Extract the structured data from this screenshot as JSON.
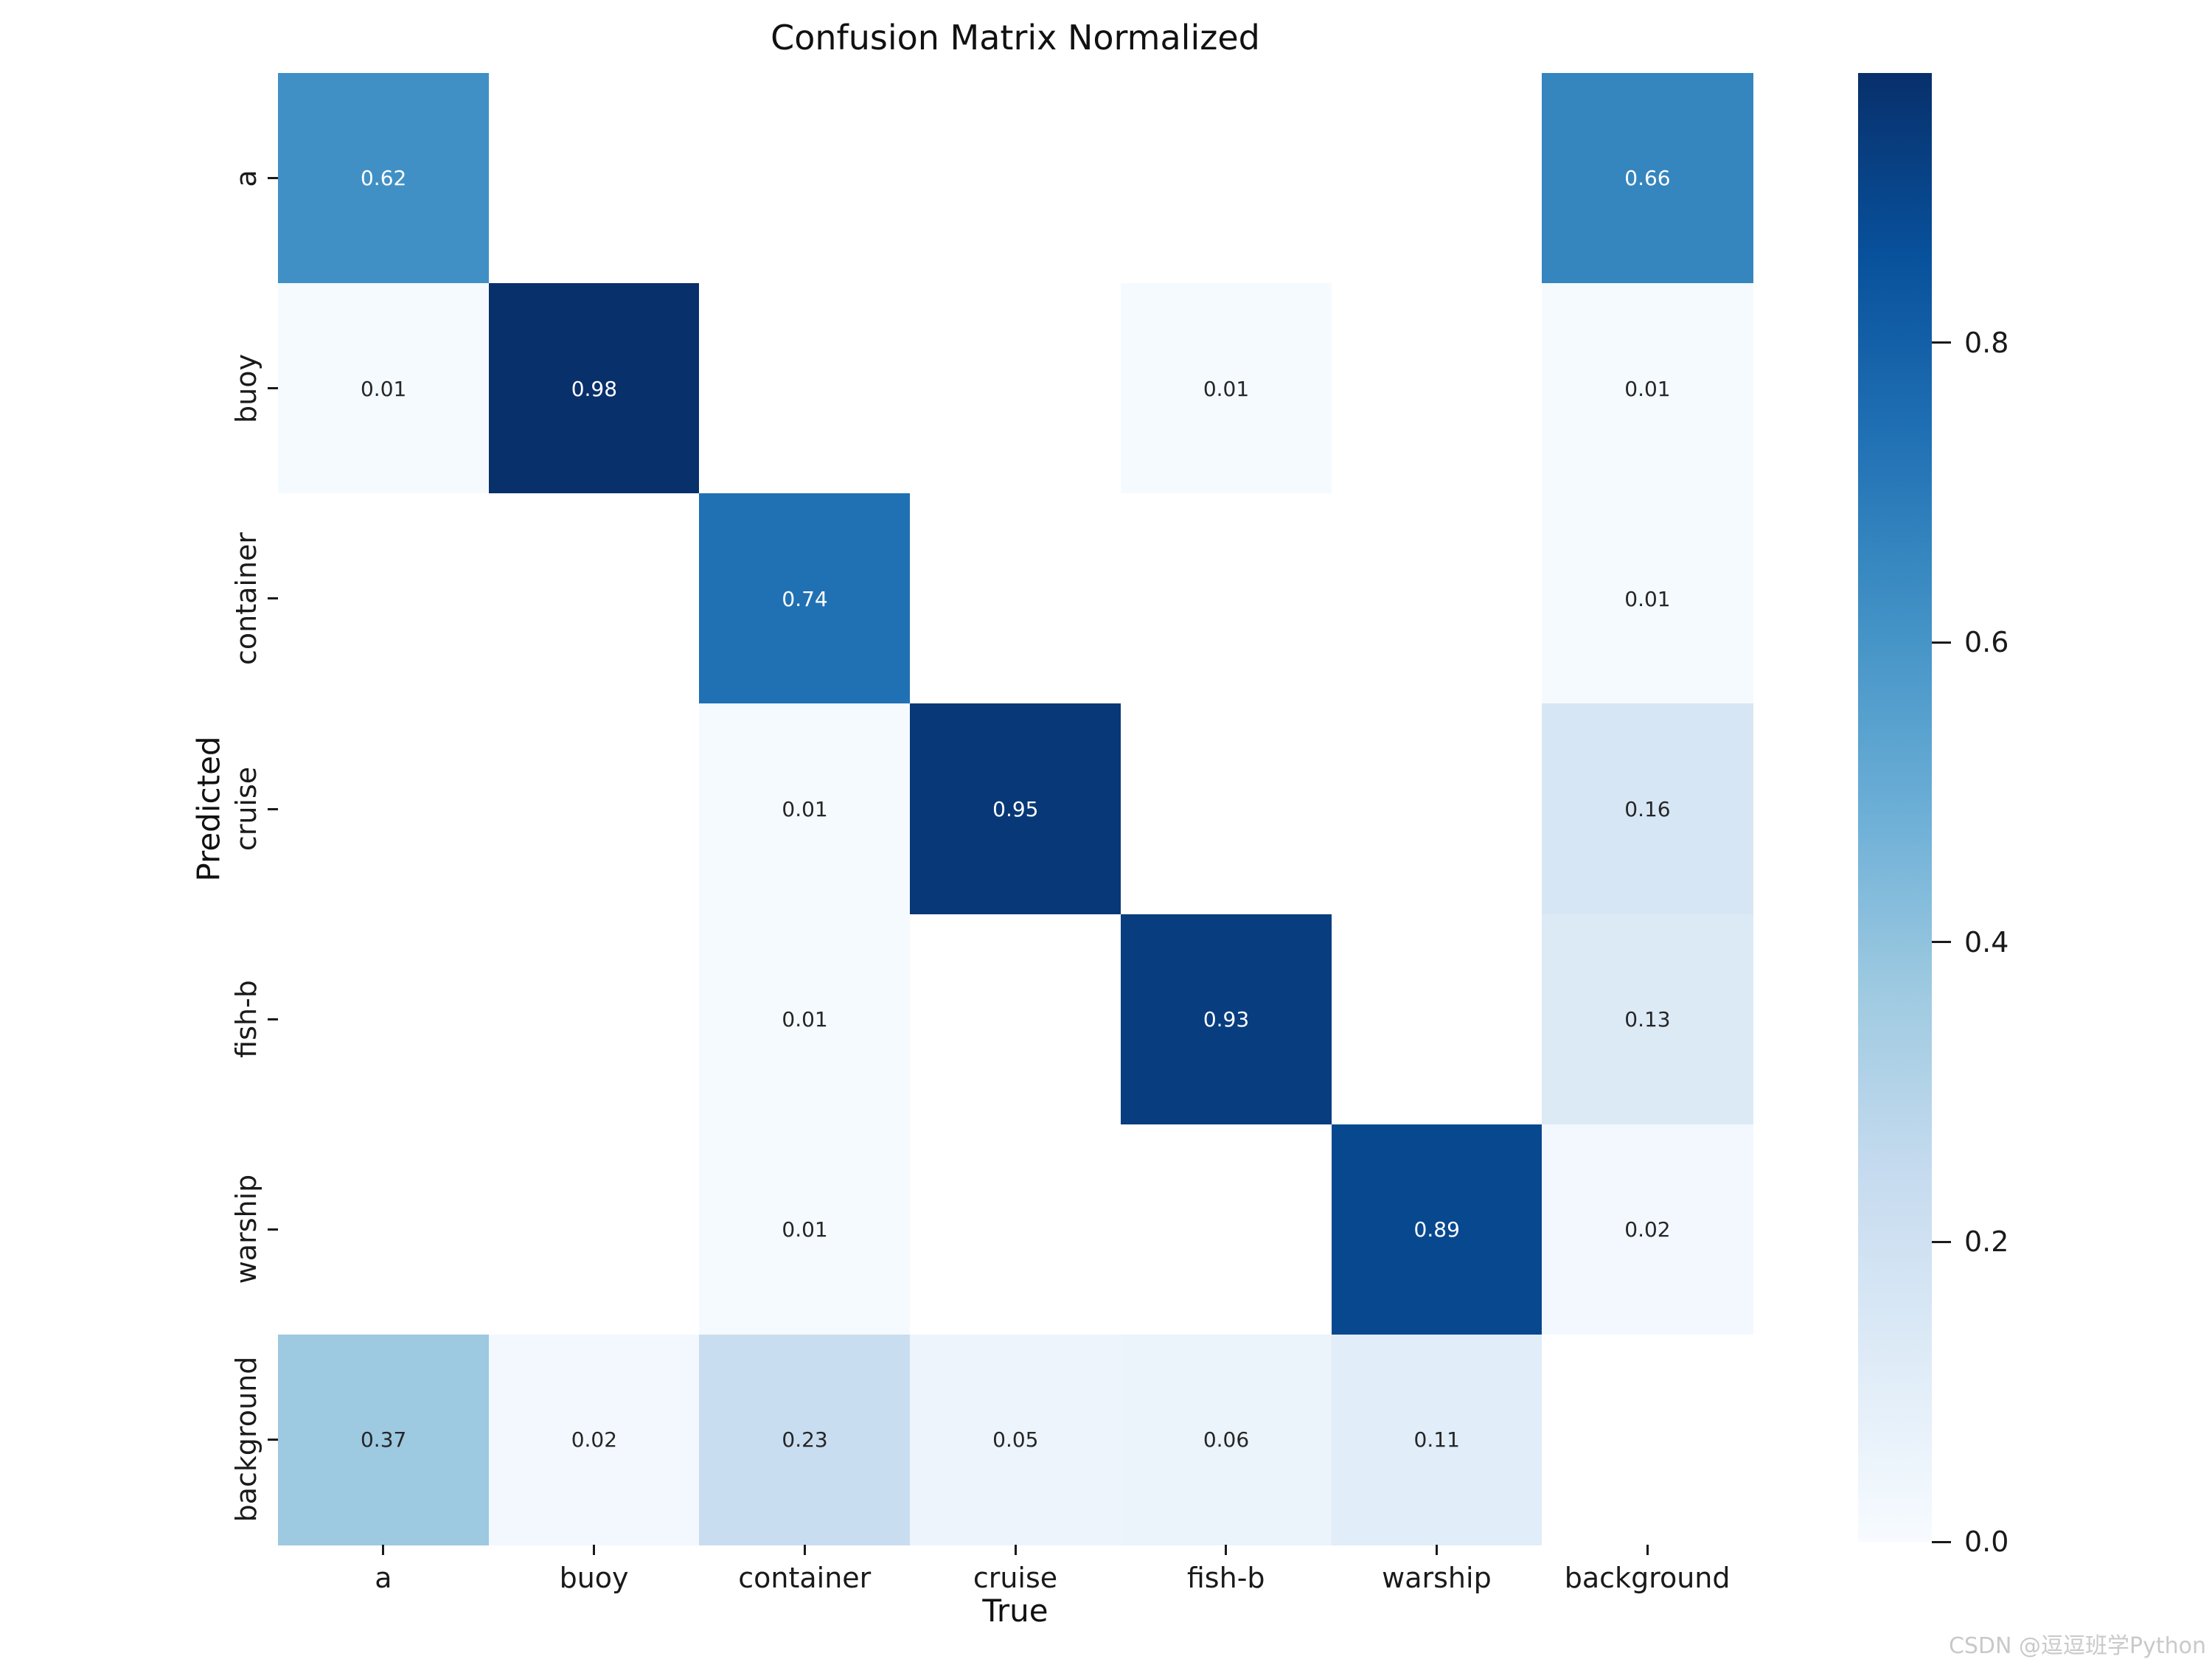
{
  "figure": {
    "watermark": "CSDN @逗逗班学Python"
  },
  "chart_data": {
    "type": "heatmap",
    "title": "Confusion Matrix Normalized",
    "xlabel": "True",
    "ylabel": "Predicted",
    "x_categories": [
      "a",
      "buoy",
      "container",
      "cruise",
      "fish-b",
      "warship",
      "background"
    ],
    "y_categories": [
      "a",
      "buoy",
      "container",
      "cruise",
      "fish-b",
      "warship",
      "background"
    ],
    "values": [
      [
        0.62,
        null,
        null,
        null,
        null,
        null,
        0.66
      ],
      [
        0.01,
        0.98,
        null,
        null,
        0.01,
        null,
        0.01
      ],
      [
        null,
        null,
        0.74,
        null,
        null,
        null,
        0.01
      ],
      [
        null,
        null,
        0.01,
        0.95,
        null,
        null,
        0.16
      ],
      [
        null,
        null,
        0.01,
        null,
        0.93,
        null,
        0.13
      ],
      [
        null,
        null,
        0.01,
        null,
        null,
        0.89,
        0.02
      ],
      [
        0.37,
        0.02,
        0.23,
        0.05,
        0.06,
        0.11,
        null
      ]
    ],
    "cell_colors": [
      [
        "#4090c5",
        "#ffffff",
        "#ffffff",
        "#ffffff",
        "#ffffff",
        "#ffffff",
        "#3585bf"
      ],
      [
        "#f5fafe",
        "#08306b",
        "#ffffff",
        "#ffffff",
        "#f5fafe",
        "#ffffff",
        "#f5fafe"
      ],
      [
        "#ffffff",
        "#ffffff",
        "#2070b4",
        "#ffffff",
        "#ffffff",
        "#ffffff",
        "#f5fafe"
      ],
      [
        "#ffffff",
        "#ffffff",
        "#f5fafe",
        "#083877",
        "#ffffff",
        "#ffffff",
        "#d7e6f5"
      ],
      [
        "#ffffff",
        "#ffffff",
        "#f5fafe",
        "#ffffff",
        "#083d7f",
        "#ffffff",
        "#dceaf6"
      ],
      [
        "#ffffff",
        "#ffffff",
        "#f5fafe",
        "#ffffff",
        "#ffffff",
        "#08488f",
        "#f3f8fe"
      ],
      [
        "#9dc9e1",
        "#f3f8fe",
        "#c9ddf0",
        "#edf4fc",
        "#ebf3fb",
        "#e1edf8",
        "#ffffff"
      ]
    ],
    "annotation_colors": {
      "on_dark": "#ffffff",
      "on_light": "#262626"
    },
    "colormap": "Blues",
    "vmin": 0.0,
    "vmax": 0.98,
    "grid": false,
    "colorbar": {
      "position": "right",
      "ticks": [
        {
          "value": 0.8,
          "label": "0.8"
        },
        {
          "value": 0.6,
          "label": "0.6"
        },
        {
          "value": 0.4,
          "label": "0.4"
        },
        {
          "value": 0.2,
          "label": "0.2"
        },
        {
          "value": 0.0,
          "label": "0.0"
        }
      ],
      "gradient_bottom_to_top": [
        "#f7fbff",
        "#deebf7",
        "#c6dbef",
        "#9ecae1",
        "#6baed6",
        "#4292c6",
        "#2171b5",
        "#08519c",
        "#08306b"
      ]
    }
  }
}
